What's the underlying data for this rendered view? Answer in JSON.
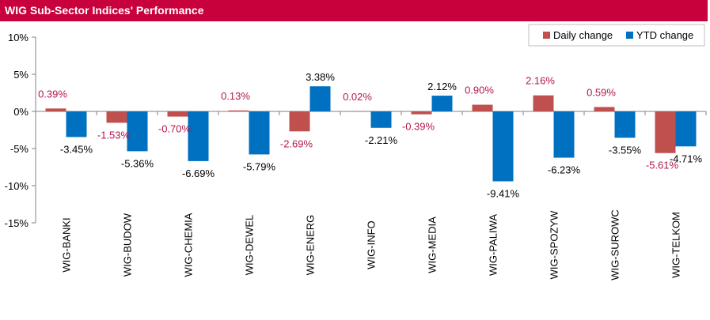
{
  "title": "WIG Sub-Sector Indices' Performance",
  "colors": {
    "title_bg": "#c8003c",
    "daily": "#c0504d",
    "ytd": "#0070c0",
    "daily_label": "#b3174d"
  },
  "chart_data": {
    "type": "bar",
    "title": "WIG Sub-Sector Indices' Performance",
    "categories": [
      "WIG-BANKI",
      "WIG-BUDOW",
      "WIG-CHEMIA",
      "WIG-DEWEL",
      "WIG-ENERG",
      "WIG-INFO",
      "WIG-MEDIA",
      "WIG-PALIWA",
      "WIG-SPOZYW",
      "WIG-SUROWC",
      "WIG-TELKOM"
    ],
    "series": [
      {
        "name": "Daily change",
        "values": [
          0.39,
          -1.53,
          -0.7,
          0.13,
          -2.69,
          0.02,
          -0.39,
          0.9,
          2.16,
          0.59,
          -5.61
        ],
        "labels": [
          "0.39%",
          "-1.53%",
          "-0.70%",
          "0.13%",
          "-2.69%",
          "0.02%",
          "-0.39%",
          "0.90%",
          "2.16%",
          "0.59%",
          "-5.61%"
        ]
      },
      {
        "name": "YTD change",
        "values": [
          -3.45,
          -5.36,
          -6.69,
          -5.79,
          3.38,
          -2.21,
          2.12,
          -9.41,
          -6.23,
          -3.55,
          -4.71
        ],
        "labels": [
          "-3.45%",
          "-5.36%",
          "-6.69%",
          "-5.79%",
          "3.38%",
          "-2.21%",
          "2.12%",
          "-9.41%",
          "-6.23%",
          "-3.55%",
          "-4.71%"
        ]
      }
    ],
    "yticks": [
      10,
      5,
      0,
      -5,
      -10,
      -15
    ],
    "ytick_labels": [
      "10%",
      "5%",
      "0%",
      "-5%",
      "-10%",
      "-15%"
    ],
    "ylim": [
      -15,
      10
    ],
    "legend_position": "top-right",
    "grid": false
  }
}
